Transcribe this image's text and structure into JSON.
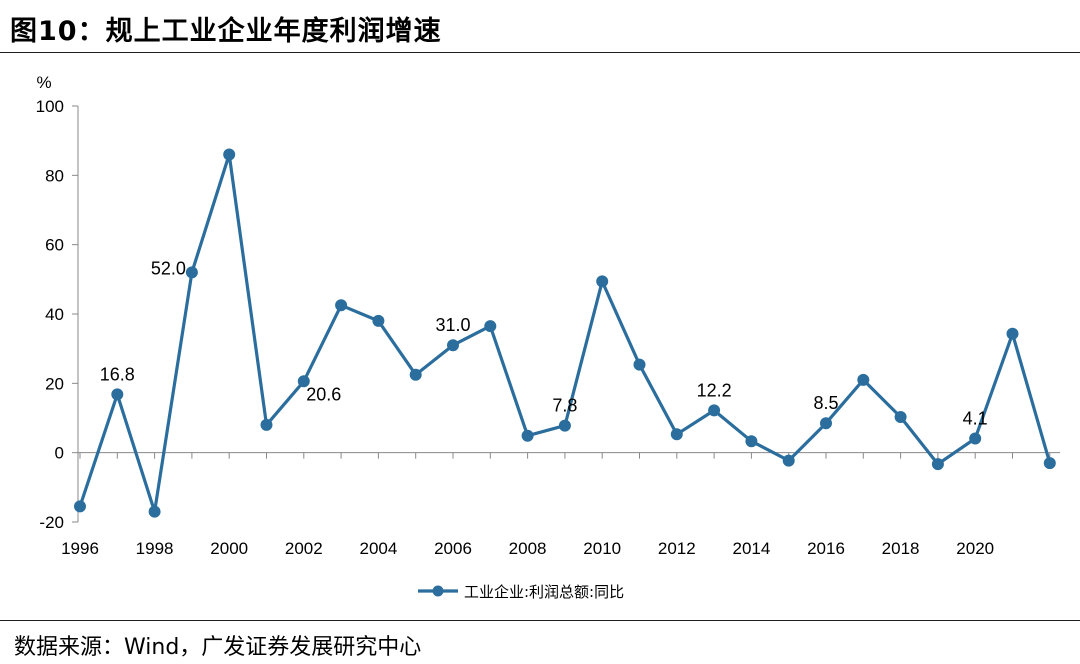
{
  "figure": {
    "title": "图10：规上工业企业年度利润增速",
    "source": "数据来源：Wind，广发证券发展研究中心"
  },
  "chart_data": {
    "type": "line",
    "title": "",
    "ylabel": "%",
    "xlabel": "",
    "ylim": [
      -20,
      100
    ],
    "y_ticks": [
      -20,
      0,
      20,
      40,
      60,
      80,
      100
    ],
    "x_tick_labels": [
      "1996",
      "1998",
      "2000",
      "2002",
      "2004",
      "2006",
      "2008",
      "2010",
      "2012",
      "2014",
      "2016",
      "2018",
      "2020"
    ],
    "grid": false,
    "legend_position": "bottom-center",
    "series": [
      {
        "name": "工业企业:利润总额:同比",
        "color": "#2B6E9E",
        "x": [
          "1996",
          "1997",
          "1998",
          "1999",
          "2000",
          "2001",
          "2002",
          "2003",
          "2004",
          "2005",
          "2006",
          "2007",
          "2008",
          "2009",
          "2010",
          "2011",
          "2012",
          "2013",
          "2014",
          "2015",
          "2016",
          "2017",
          "2018",
          "2019",
          "2020",
          "2021",
          "2022"
        ],
        "values": [
          -15.5,
          16.8,
          -17.0,
          52.0,
          86.0,
          8.0,
          20.6,
          42.5,
          38.0,
          22.5,
          31.0,
          36.5,
          4.9,
          7.8,
          49.4,
          25.4,
          5.3,
          12.2,
          3.3,
          -2.3,
          8.5,
          21.0,
          10.3,
          -3.3,
          4.1,
          34.3,
          -3.0
        ]
      }
    ],
    "data_labels": [
      {
        "x": "1997",
        "text": "16.8"
      },
      {
        "x": "1999",
        "text": "52.0"
      },
      {
        "x": "2002",
        "text": "20.6"
      },
      {
        "x": "2006",
        "text": "31.0"
      },
      {
        "x": "2009",
        "text": "7.8"
      },
      {
        "x": "2013",
        "text": "12.2"
      },
      {
        "x": "2016",
        "text": "8.5"
      },
      {
        "x": "2020",
        "text": "4.1"
      }
    ]
  }
}
